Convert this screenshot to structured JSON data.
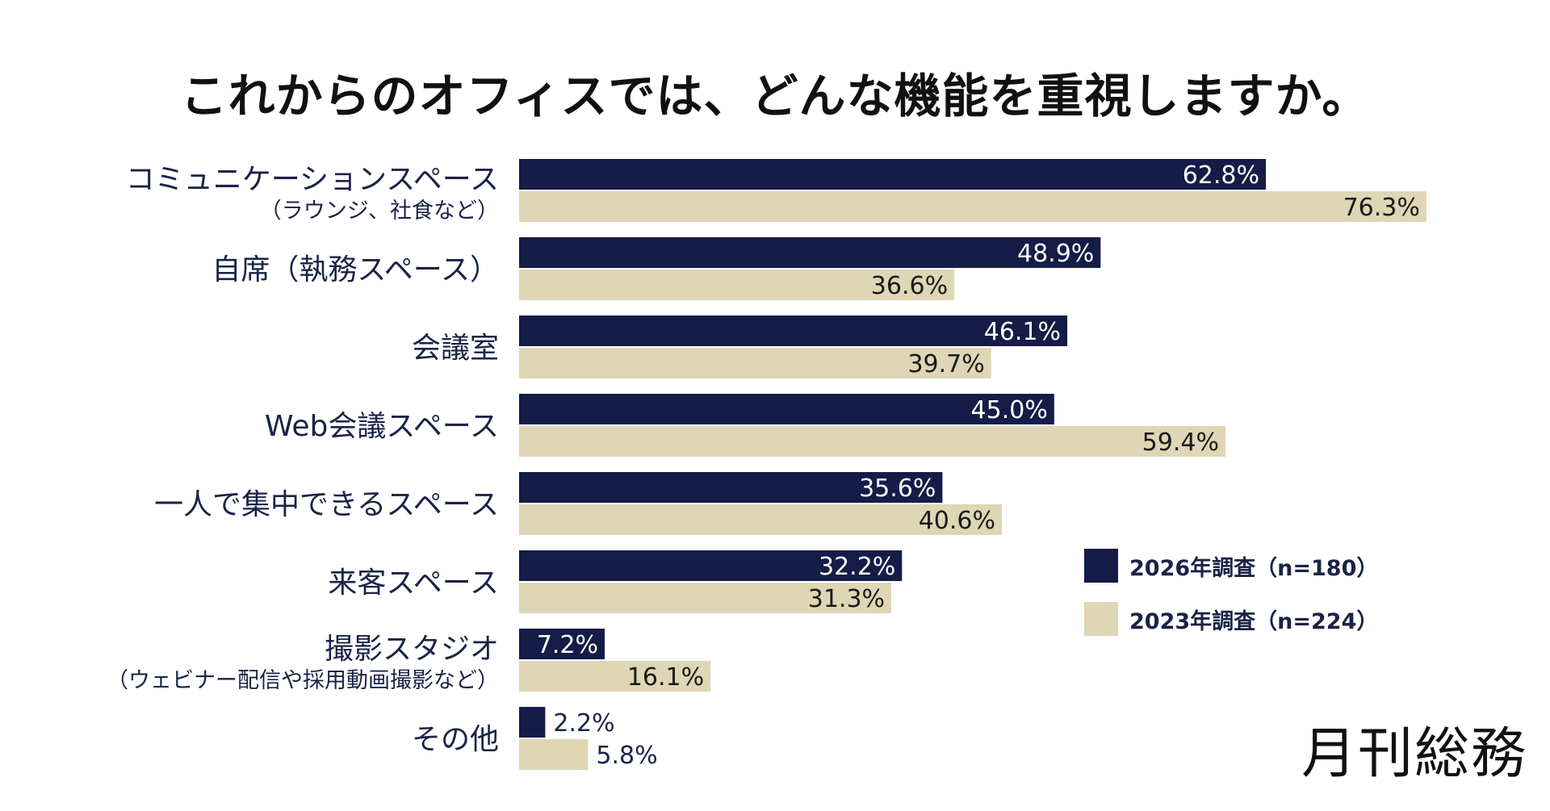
{
  "chart_data": {
    "type": "bar",
    "orientation": "horizontal",
    "title": "これからのオフィスでは、どんな機能を重視しますか。",
    "categories": [
      {
        "label": "コミュニケーションスペース",
        "sublabel": "（ラウンジ、社食など）"
      },
      {
        "label": "自席（執務スペース）",
        "sublabel": ""
      },
      {
        "label": "会議室",
        "sublabel": ""
      },
      {
        "label": "Web会議スペース",
        "sublabel": ""
      },
      {
        "label": "一人で集中できるスペース",
        "sublabel": ""
      },
      {
        "label": "来客スペース",
        "sublabel": ""
      },
      {
        "label": "撮影スタジオ",
        "sublabel": "（ウェビナー配信や採用動画撮影など）"
      },
      {
        "label": "その他",
        "sublabel": ""
      }
    ],
    "series": [
      {
        "name": "2026年調査（n=180）",
        "color": "#141c47",
        "values": [
          62.8,
          48.9,
          46.1,
          45.0,
          35.6,
          32.2,
          7.2,
          2.2
        ],
        "value_labels": [
          "62.8%",
          "48.9%",
          "46.1%",
          "45.0%",
          "35.6%",
          "32.2%",
          "7.2%",
          "2.2%"
        ]
      },
      {
        "name": "2023年調査（n=224）",
        "color": "#ded6b4",
        "values": [
          76.3,
          36.6,
          39.7,
          59.4,
          40.6,
          31.3,
          16.1,
          5.8
        ],
        "value_labels": [
          "76.3%",
          "36.6%",
          "39.7%",
          "59.4%",
          "40.6%",
          "31.3%",
          "16.1%",
          "5.8%"
        ]
      }
    ],
    "unit": "%",
    "xlim": [
      0,
      100
    ],
    "grid": false,
    "legend_position": "right"
  },
  "brand": "月刊総務"
}
